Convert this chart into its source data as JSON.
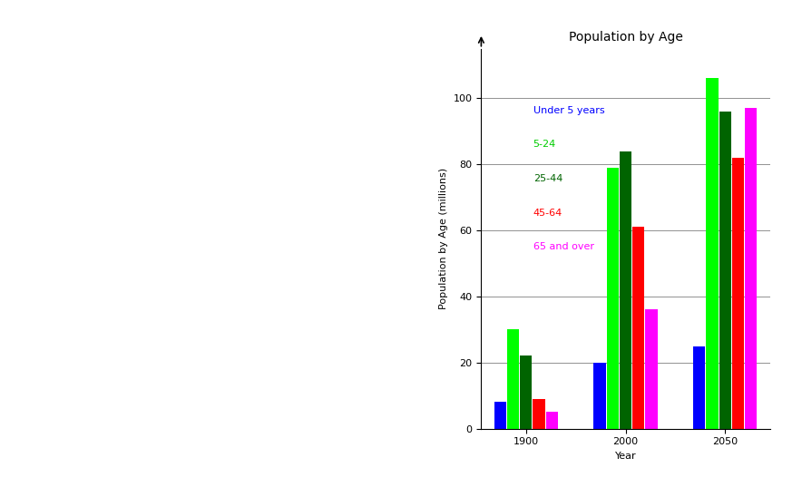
{
  "title": "Population by Age",
  "xlabel": "Year",
  "ylabel": "Population by Age (millions)",
  "years": [
    1900,
    2000,
    2050
  ],
  "categories": [
    "Under 5 years",
    "5-24",
    "25-44",
    "45-64",
    "65 and over"
  ],
  "colors": [
    "#0000ff",
    "#00ff00",
    "#006400",
    "#ff0000",
    "#ff00ff"
  ],
  "legend_text_colors": [
    "#0000ff",
    "#00cc00",
    "#006400",
    "#ff0000",
    "#ff00ff"
  ],
  "values": {
    "1900": [
      8,
      30,
      22,
      9,
      5
    ],
    "2000": [
      20,
      79,
      84,
      61,
      36
    ],
    "2050": [
      25,
      106,
      96,
      82,
      97
    ]
  },
  "ylim": [
    0,
    115
  ],
  "yticks": [
    0,
    20,
    40,
    60,
    80,
    100
  ],
  "background_color": "#ffffff",
  "title_fontsize": 10,
  "axis_label_fontsize": 8,
  "tick_fontsize": 8,
  "legend_fontsize": 8,
  "bar_width": 0.13
}
